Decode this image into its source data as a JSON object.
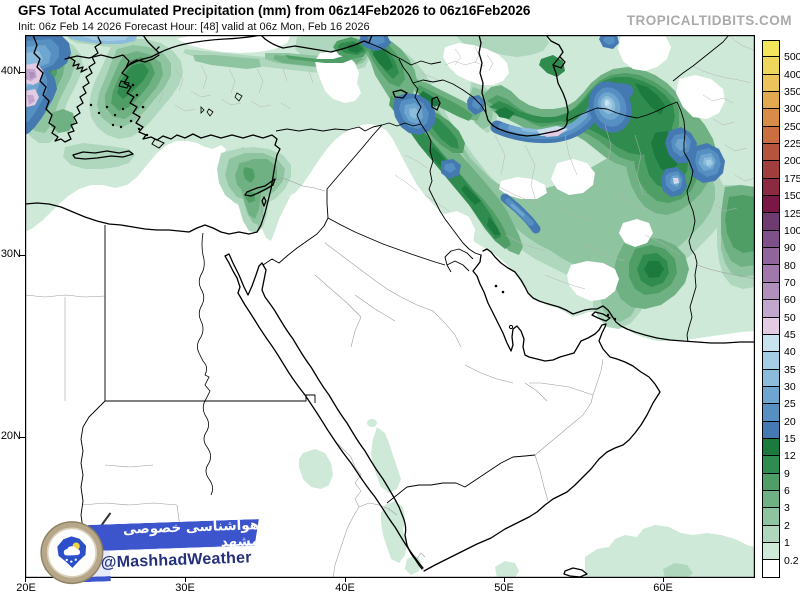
{
  "header": {
    "title": "GFS Total Accumulated Precipitation (mm) from 06z14Feb2026 to 06z16Feb2026",
    "subtitle": "Init: 06z Feb 14 2026   Forecast Hour: [48]   valid at 06z Mon, Feb 16 2026",
    "site_watermark": "TROPICALTIDBITS.COM"
  },
  "map": {
    "y_axis_labels": [
      "40N",
      "30N",
      "20N"
    ],
    "x_axis_labels": [
      "20E",
      "30E",
      "40E",
      "50E",
      "60E"
    ]
  },
  "colorbar": {
    "boundary_values": [
      "500",
      "400",
      "350",
      "300",
      "250",
      "225",
      "200",
      "175",
      "150",
      "125",
      "100",
      "90",
      "80",
      "70",
      "60",
      "50",
      "45",
      "40",
      "35",
      "30",
      "25",
      "20",
      "15",
      "12",
      "9",
      "6",
      "3",
      "2",
      "1",
      "0.2"
    ],
    "cell_colors_top_to_bottom": [
      "#f3e65c",
      "#efd75e",
      "#ebc45b",
      "#e3a950",
      "#d88c47",
      "#c96f40",
      "#b5543c",
      "#a03e3e",
      "#8c2a42",
      "#7a1845",
      "#6f3c72",
      "#7f518b",
      "#90659c",
      "#a078ab",
      "#b18fbc",
      "#c2a6cd",
      "#e3cce3",
      "#c9e2ef",
      "#a6cde6",
      "#8bbcdc",
      "#6ea6d0",
      "#5690c2",
      "#4479b2",
      "#1d7a3e",
      "#2f8b4e",
      "#4f9e66",
      "#6fb183",
      "#8fc4a0",
      "#afd7bd",
      "#cfe9d9",
      "#ffffff"
    ]
  },
  "branding": {
    "persian_text": "هواشناسی خصوصی مشهد",
    "handle": "@MashhadWeather",
    "banner_color": "#3d55cc",
    "handle_color": "#24307a"
  }
}
